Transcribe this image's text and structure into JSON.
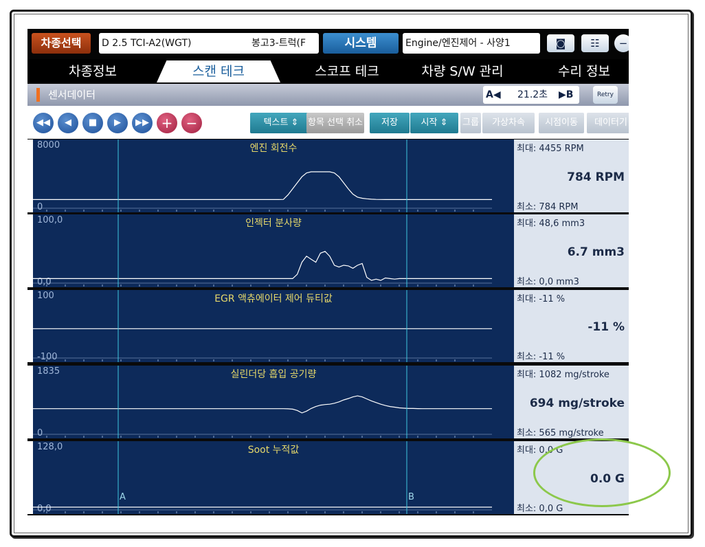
{
  "header": {
    "vehicle_select": "차종선택",
    "vehicle": "D 2.5 TCI-A2(WGT)",
    "model": "봉고3-트럭(F",
    "system_button": "시스템",
    "system": "Engine/엔진제어 - 사양1",
    "camera_icon": "camera-icon",
    "layout_icon": "layout-icon"
  },
  "tabs": [
    {
      "label": "차종정보"
    },
    {
      "label": "스캔 테크",
      "active": true
    },
    {
      "label": "스코프 테크"
    },
    {
      "label": "차량 S/W 관리"
    },
    {
      "label": "수리 정보"
    }
  ],
  "sensor_bar": {
    "title": "센서데이터",
    "a": "A◀",
    "time": "21.2초",
    "b": "▶B",
    "retry": "Retry"
  },
  "toolbar": {
    "nav": [
      "rewind",
      "prev",
      "stop",
      "play",
      "fast-forward",
      "zoom-in",
      "zoom-out"
    ],
    "text": "텍스트 ⇕",
    "item_select": "항목 선택 취소",
    "save": "저장",
    "start": "시작 ⇕",
    "group": "그룹",
    "virtual_speed": "가상차속",
    "move": "시점이동",
    "data": "데이터기"
  },
  "cursors": {
    "a": "A",
    "b": "B"
  },
  "accent": {
    "graph_bg": "#0d2a5a",
    "title": "#e6d86a",
    "cursor": "#40c8e0",
    "highlight": "#8cc84b"
  },
  "chart_data": [
    {
      "type": "line",
      "title": "엔진 회전수",
      "ylim": [
        0,
        8000
      ],
      "ymax_label": "8000",
      "ymin_label": "0",
      "max": "최대:  4455 RPM",
      "current": "784 RPM",
      "min": "최소:   784 RPM",
      "values": [
        784,
        784,
        784,
        784,
        784,
        784,
        784,
        784,
        784,
        784,
        784,
        784,
        784,
        784,
        784,
        784,
        784,
        784,
        784,
        784,
        784,
        784,
        784,
        784,
        784,
        784,
        784,
        784,
        784,
        784,
        784,
        784,
        784,
        784,
        784,
        784,
        784,
        784,
        784,
        784,
        784,
        784,
        784,
        784,
        784,
        784,
        784,
        784,
        784,
        784,
        784,
        784,
        784,
        784,
        800,
        1400,
        2200,
        3000,
        3800,
        4300,
        4455,
        4455,
        4455,
        4455,
        4455,
        4300,
        3800,
        3000,
        2200,
        1500,
        1100,
        950,
        880,
        830,
        800,
        790,
        784,
        784,
        784,
        784,
        784,
        784,
        784,
        784,
        784,
        784,
        784,
        784,
        784,
        784,
        784,
        784,
        784,
        784,
        784,
        784,
        784,
        784,
        784,
        784
      ]
    },
    {
      "type": "line",
      "title": "인젝터 분사량",
      "ylim": [
        0,
        100
      ],
      "ymax_label": "100,0",
      "ymin_label": "0,0",
      "max": "최대:  48,6 mm3",
      "current": "6.7 mm3",
      "min": "최소:   0,0 mm3",
      "values": [
        3,
        3,
        3,
        3,
        3,
        3,
        3,
        3,
        3,
        3,
        3,
        3,
        3,
        3,
        3,
        3,
        3,
        3,
        3,
        3,
        3,
        3,
        3,
        3,
        3,
        3,
        3,
        3,
        3,
        3,
        3,
        3,
        3,
        3,
        3,
        3,
        3,
        3,
        3,
        3,
        3,
        3,
        3,
        3,
        3,
        3,
        3,
        3,
        3,
        3,
        3,
        3,
        3,
        3,
        3,
        3,
        3,
        10,
        30,
        40,
        35,
        30,
        45,
        48,
        40,
        25,
        22,
        25,
        24,
        20,
        25,
        28,
        5,
        0,
        2,
        0,
        4,
        3,
        2,
        3,
        3,
        3,
        3,
        3,
        3,
        3,
        3,
        3,
        3,
        3,
        3,
        3,
        3,
        3,
        3,
        3,
        3,
        3,
        3,
        3
      ]
    },
    {
      "type": "line",
      "title": "EGR 액츄에이터 제어 듀티값",
      "ylim": [
        -100,
        100
      ],
      "ymax_label": "100",
      "ymin_label": "-100",
      "max": "최대:   -11 %",
      "current": "-11 %",
      "min": "최소:   -11 %",
      "values": [
        -11,
        -11,
        -11,
        -11,
        -11,
        -11,
        -11,
        -11,
        -11,
        -11,
        -11,
        -11,
        -11,
        -11,
        -11,
        -11,
        -11,
        -11,
        -11,
        -11,
        -11,
        -11,
        -11,
        -11,
        -11,
        -11,
        -11,
        -11,
        -11,
        -11,
        -11,
        -11,
        -11,
        -11,
        -11,
        -11,
        -11,
        -11,
        -11,
        -11,
        -11,
        -11,
        -11,
        -11,
        -11,
        -11,
        -11,
        -11,
        -11,
        -11,
        -11,
        -11,
        -11,
        -11,
        -11,
        -11,
        -11,
        -11,
        -11,
        -11,
        -11,
        -11,
        -11,
        -11,
        -11,
        -11,
        -11,
        -11,
        -11,
        -11,
        -11,
        -11,
        -11,
        -11,
        -11,
        -11,
        -11,
        -11,
        -11,
        -11,
        -11,
        -11,
        -11,
        -11,
        -11,
        -11,
        -11,
        -11,
        -11,
        -11,
        -11,
        -11,
        -11,
        -11,
        -11,
        -11,
        -11,
        -11,
        -11,
        -11
      ]
    },
    {
      "type": "line",
      "title": "실린더당 흡입 공기량",
      "ylim": [
        0,
        1835
      ],
      "ymax_label": "1835",
      "ymin_label": "0",
      "max": "최대:  1082 mg/stroke",
      "current": "694 mg/stroke",
      "min": "최소:   565 mg/stroke",
      "values": [
        694,
        694,
        694,
        694,
        694,
        694,
        694,
        694,
        694,
        694,
        694,
        694,
        694,
        694,
        694,
        694,
        694,
        694,
        694,
        694,
        694,
        694,
        694,
        694,
        694,
        694,
        694,
        694,
        694,
        694,
        694,
        694,
        694,
        694,
        694,
        694,
        694,
        694,
        694,
        694,
        694,
        694,
        694,
        694,
        694,
        694,
        694,
        694,
        694,
        694,
        694,
        694,
        694,
        694,
        694,
        690,
        680,
        640,
        565,
        620,
        700,
        760,
        800,
        820,
        830,
        860,
        900,
        960,
        1000,
        1050,
        1082,
        1050,
        990,
        930,
        880,
        830,
        790,
        760,
        740,
        720,
        710,
        700,
        700,
        696,
        694,
        694,
        694,
        694,
        694,
        694,
        694,
        694,
        694,
        694,
        694,
        694,
        694,
        694,
        694,
        694
      ]
    },
    {
      "type": "line",
      "title": "Soot 누적값",
      "ylim": [
        0,
        128
      ],
      "ymax_label": "128,0",
      "ymin_label": "0,0",
      "max": "최대:   0,0 G",
      "current": "0.0 G",
      "min": "최소:   0,0 G",
      "values": [
        0,
        0,
        0,
        0,
        0,
        0,
        0,
        0,
        0,
        0,
        0,
        0,
        0,
        0,
        0,
        0,
        0,
        0,
        0,
        0,
        0,
        0,
        0,
        0,
        0,
        0,
        0,
        0,
        0,
        0,
        0,
        0,
        0,
        0,
        0,
        0,
        0,
        0,
        0,
        0,
        0,
        0,
        0,
        0,
        0,
        0,
        0,
        0,
        0,
        0,
        0,
        0,
        0,
        0,
        0,
        0,
        0,
        0,
        0,
        0,
        0,
        0,
        0,
        0,
        0,
        0,
        0,
        0,
        0,
        0,
        0,
        0,
        0,
        0,
        0,
        0,
        0,
        0,
        0,
        0,
        0,
        0,
        0,
        0,
        0,
        0,
        0,
        0,
        0,
        0,
        0,
        0,
        0,
        0,
        0,
        0,
        0,
        0,
        0,
        0
      ]
    }
  ]
}
